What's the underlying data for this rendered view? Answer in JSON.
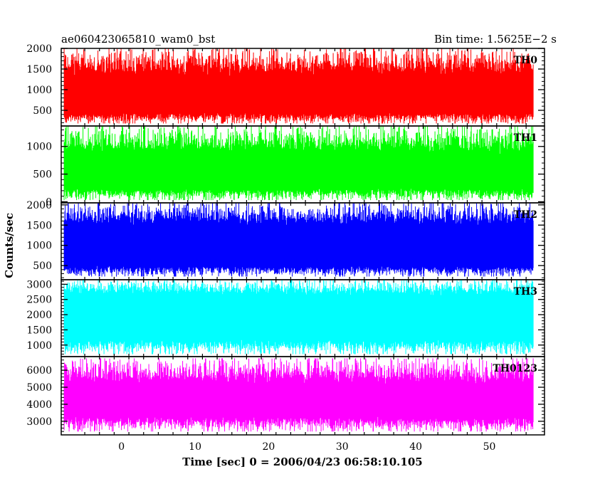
{
  "header": {
    "left_title": "ae060423065810_wam0_bst",
    "right_title": "Bin time: 1.5625E−2 s"
  },
  "chart_data": {
    "type": "line",
    "title": "ae060423065810_wam0_bst",
    "subtitle": "Bin time: 1.5625E−2 s",
    "xlabel": "Time [sec] 0 = 2006/04/23 06:58:10.105",
    "ylabel": "Counts/sec",
    "xlim": [
      -8.2,
      57.5
    ],
    "x_range_data": [
      -7.8,
      56.0
    ],
    "bin_time": 0.015625,
    "x_ticks": [
      0,
      10,
      20,
      30,
      40,
      50
    ],
    "grid": false,
    "legend": "none",
    "panels": [
      {
        "name": "TH0",
        "color": "#ff0000",
        "ylim": [
          120,
          2000
        ],
        "y_ticks": [
          500,
          1000,
          1500,
          2000
        ],
        "y_ticklabels": [
          "500",
          "1000",
          "1500",
          "2000"
        ],
        "baseline": 880,
        "lower_envelope": [
          180,
          450
        ],
        "upper_envelope": [
          1300,
          2000
        ],
        "peak": 1990
      },
      {
        "name": "TH1",
        "color": "#00ff00",
        "ylim": [
          -20,
          1370
        ],
        "y_ticks": [
          0,
          500,
          1000
        ],
        "y_ticklabels": [
          "0",
          "500",
          "1000"
        ],
        "baseline": 560,
        "lower_envelope": [
          30,
          250
        ],
        "upper_envelope": [
          850,
          1370
        ],
        "peak": 1360
      },
      {
        "name": "TH2",
        "color": "#0000ff",
        "ylim": [
          150,
          2050
        ],
        "y_ticks": [
          500,
          1000,
          1500,
          2000
        ],
        "y_ticklabels": [
          "500",
          "1000",
          "1500",
          "2000"
        ],
        "baseline": 980,
        "lower_envelope": [
          230,
          500
        ],
        "upper_envelope": [
          1450,
          2040
        ],
        "peak": 2030
      },
      {
        "name": "TH3",
        "color": "#00ffff",
        "ylim": [
          620,
          3150
        ],
        "y_ticks": [
          1000,
          1500,
          2000,
          2500,
          3000
        ],
        "y_ticklabels": [
          "1000",
          "1500",
          "2000",
          "2500",
          "3000"
        ],
        "baseline": 1900,
        "lower_envelope": [
          700,
          1200
        ],
        "upper_envelope": [
          2600,
          3150
        ],
        "peak": 3130
      },
      {
        "name": "TH0123",
        "color": "#ff00ff",
        "ylim": [
          2200,
          6800
        ],
        "y_ticks": [
          3000,
          4000,
          5000,
          6000
        ],
        "y_ticklabels": [
          "3000",
          "4000",
          "5000",
          "6000"
        ],
        "baseline": 4150,
        "lower_envelope": [
          2400,
          3300
        ],
        "upper_envelope": [
          5100,
          6700
        ],
        "peak": 6650
      }
    ]
  }
}
